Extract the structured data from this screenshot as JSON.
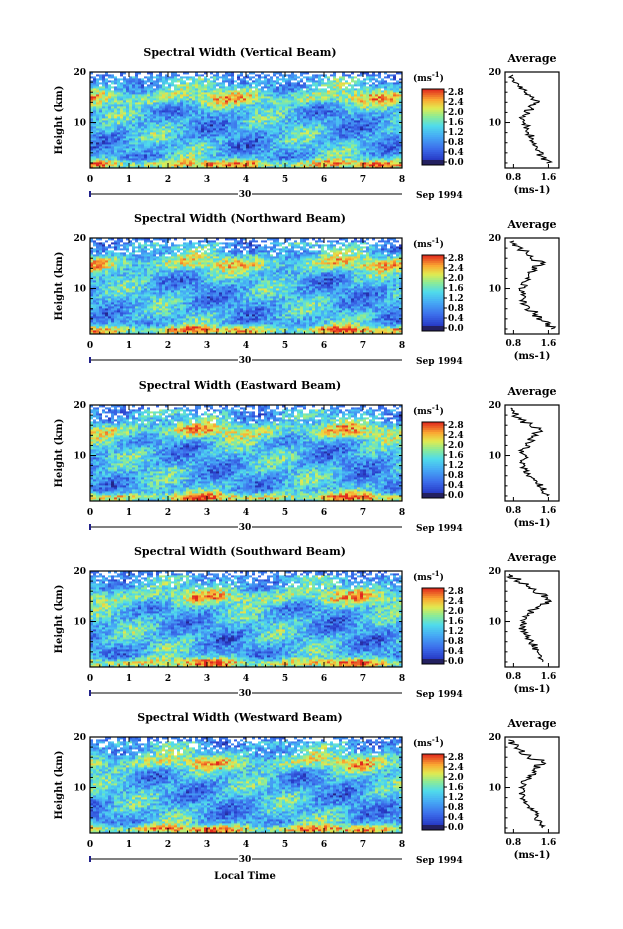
{
  "figure": {
    "x_label": "Local Time",
    "date_suffix": "Sep 1994",
    "date_tick": "30",
    "colorbar_unit": "(ms",
    "colorbar_unit_exp": "-1",
    "colorbar_ticks": [
      "0.0",
      "0.4",
      "0.8",
      "1.2",
      "1.6",
      "2.0",
      "2.4",
      "2.8"
    ]
  },
  "chart_data": [
    {
      "type": "heatmap",
      "title": "Spectral Width (Vertical Beam)",
      "xlabel": "Local Time",
      "ylabel": "Height (km)",
      "x_ticks": [
        "0",
        "1",
        "2",
        "3",
        "4",
        "5",
        "6",
        "7",
        "8"
      ],
      "y_ticks": [
        "10",
        "20"
      ],
      "xlim": [
        0,
        8
      ],
      "ylim": [
        1,
        20
      ],
      "zlim": [
        0,
        2.8
      ],
      "z_unit": "ms-1",
      "profile": {
        "title": "Average",
        "xlabel": "(ms-1)",
        "x_ticks": [
          "0.8",
          "1.6"
        ],
        "y_ticks": [
          "10",
          "20"
        ],
        "heights": [
          2,
          3,
          4,
          5,
          6,
          7,
          8,
          9,
          10,
          11,
          12,
          13,
          14,
          15,
          16,
          17,
          18,
          19
        ],
        "values": [
          1.6,
          1.5,
          1.4,
          1.3,
          1.25,
          1.2,
          1.15,
          1.1,
          1.05,
          1.0,
          1.1,
          1.2,
          1.35,
          1.2,
          1.05,
          0.95,
          0.85,
          0.75
        ]
      }
    },
    {
      "type": "heatmap",
      "title": "Spectral Width (Northward Beam)",
      "xlabel": "Local Time",
      "ylabel": "Height (km)",
      "x_ticks": [
        "0",
        "1",
        "2",
        "3",
        "4",
        "5",
        "6",
        "7",
        "8"
      ],
      "y_ticks": [
        "10",
        "20"
      ],
      "xlim": [
        0,
        8
      ],
      "ylim": [
        1,
        20
      ],
      "zlim": [
        0,
        2.8
      ],
      "z_unit": "ms-1",
      "profile": {
        "title": "Average",
        "xlabel": "(ms-1)",
        "x_ticks": [
          "0.8",
          "1.6"
        ],
        "y_ticks": [
          "10",
          "20"
        ],
        "heights": [
          2,
          3,
          4,
          5,
          6,
          7,
          8,
          9,
          10,
          11,
          12,
          13,
          14,
          15,
          16,
          17,
          18,
          19
        ],
        "values": [
          1.7,
          1.6,
          1.4,
          1.3,
          1.1,
          1.05,
          1.0,
          1.05,
          1.0,
          1.05,
          1.1,
          1.2,
          1.3,
          1.45,
          1.2,
          1.1,
          0.95,
          0.8
        ]
      }
    },
    {
      "type": "heatmap",
      "title": "Spectral Width (Eastward Beam)",
      "xlabel": "Local Time",
      "ylabel": "Height (km)",
      "x_ticks": [
        "0",
        "1",
        "2",
        "3",
        "4",
        "5",
        "6",
        "7",
        "8"
      ],
      "y_ticks": [
        "10",
        "20"
      ],
      "xlim": [
        0,
        8
      ],
      "ylim": [
        1,
        20
      ],
      "zlim": [
        0,
        2.8
      ],
      "z_unit": "ms-1",
      "profile": {
        "title": "Average",
        "xlabel": "(ms-1)",
        "x_ticks": [
          "0.8",
          "1.6"
        ],
        "y_ticks": [
          "10",
          "20"
        ],
        "heights": [
          2,
          3,
          4,
          5,
          6,
          7,
          8,
          9,
          10,
          11,
          12,
          13,
          14,
          15,
          16,
          17,
          18,
          19
        ],
        "values": [
          1.6,
          1.5,
          1.4,
          1.3,
          1.15,
          1.1,
          1.0,
          1.0,
          1.05,
          1.0,
          1.1,
          1.2,
          1.3,
          1.4,
          1.2,
          1.0,
          0.85,
          0.75
        ]
      }
    },
    {
      "type": "heatmap",
      "title": "Spectral Width (Southward Beam)",
      "xlabel": "Local Time",
      "ylabel": "Height (km)",
      "x_ticks": [
        "0",
        "1",
        "2",
        "3",
        "4",
        "5",
        "6",
        "7",
        "8"
      ],
      "y_ticks": [
        "10",
        "20"
      ],
      "xlim": [
        0,
        8
      ],
      "ylim": [
        1,
        20
      ],
      "zlim": [
        0,
        2.8
      ],
      "z_unit": "ms-1",
      "profile": {
        "title": "Average",
        "xlabel": "(ms-1)",
        "x_ticks": [
          "0.8",
          "1.6"
        ],
        "y_ticks": [
          "10",
          "20"
        ],
        "heights": [
          2,
          3,
          4,
          5,
          6,
          7,
          8,
          9,
          10,
          11,
          12,
          13,
          14,
          15,
          16,
          17,
          18,
          19
        ],
        "values": [
          1.5,
          1.45,
          1.4,
          1.3,
          1.2,
          1.1,
          1.05,
          1.0,
          1.05,
          1.1,
          1.2,
          1.35,
          1.6,
          1.5,
          1.3,
          1.1,
          0.9,
          0.75
        ]
      }
    },
    {
      "type": "heatmap",
      "title": "Spectral Width (Westward Beam)",
      "xlabel": "Local Time",
      "ylabel": "Height (km)",
      "x_ticks": [
        "0",
        "1",
        "2",
        "3",
        "4",
        "5",
        "6",
        "7",
        "8"
      ],
      "y_ticks": [
        "10",
        "20"
      ],
      "xlim": [
        0,
        8
      ],
      "ylim": [
        1,
        20
      ],
      "zlim": [
        0,
        2.8
      ],
      "z_unit": "ms-1",
      "profile": {
        "title": "Average",
        "xlabel": "(ms-1)",
        "x_ticks": [
          "0.8",
          "1.6"
        ],
        "y_ticks": [
          "10",
          "20"
        ],
        "heights": [
          2,
          3,
          4,
          5,
          6,
          7,
          8,
          9,
          10,
          11,
          12,
          13,
          14,
          15,
          16,
          17,
          18,
          19
        ],
        "values": [
          1.5,
          1.4,
          1.35,
          1.3,
          1.2,
          1.1,
          1.05,
          1.0,
          1.0,
          1.05,
          1.15,
          1.25,
          1.35,
          1.45,
          1.2,
          1.0,
          0.85,
          0.75
        ]
      }
    }
  ]
}
